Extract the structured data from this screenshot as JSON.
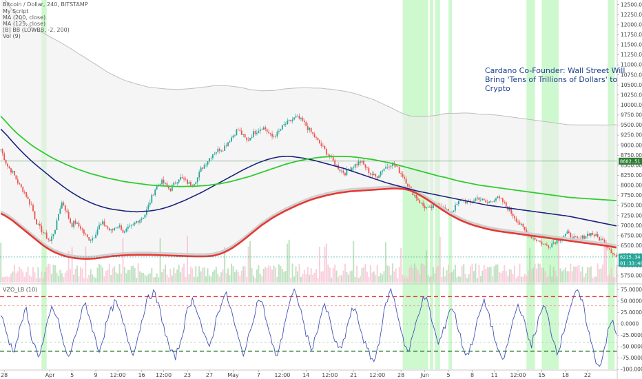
{
  "legend": {
    "title": "Bitcoin / Dollar, 240, BITSTAMP",
    "lines": [
      "My Script",
      "MA (200, close)",
      "MA (125, close)",
      "[B] BB (LOWBB, -2, 200)",
      "Vol (9)"
    ]
  },
  "news_annotation": [
    "Cardano Co-Founder: Wall Street Will",
    "Bring 'Tens of Trillions of Dollars' to",
    "Crypto"
  ],
  "oscillator_label": "VZO_LB (10)",
  "price_tags": [
    {
      "value": "8602.51",
      "kind": "level",
      "color": "#2e7d32"
    },
    {
      "value": "6215.34",
      "kind": "last",
      "color": "#26a69a"
    },
    {
      "value": "01:33:40",
      "kind": "timer",
      "color": "#26a69a"
    }
  ],
  "colors": {
    "ma200": "#2ecc2e",
    "ma125": "#1a237e",
    "lowbb": "#e53935",
    "band": "#bdbdbd",
    "osc": "#3f51b5",
    "highlight": "#a5f3a5",
    "bull": "#26a69a",
    "bear": "#ef5350"
  },
  "chart_data": [
    {
      "type": "line",
      "title": "Bitcoin / Dollar, 240, BITSTAMP",
      "ylim": [
        5580,
        12580
      ],
      "y_ticks": [
        "12500.00",
        "12250.00",
        "12000.00",
        "11750.00",
        "11500.00",
        "11250.00",
        "11000.00",
        "10750.00",
        "10500.00",
        "10250.00",
        "10000.00",
        "9750.00",
        "9500.00",
        "9250.00",
        "9000.00",
        "8750.00",
        "8500.00",
        "8250.00",
        "8000.00",
        "7750.00",
        "7500.00",
        "7250.00",
        "7000.00",
        "6750.00",
        "6500.00",
        "6250.00",
        "6000.00",
        "5750.00"
      ],
      "x_ticks": [
        "28",
        "Apr",
        "5",
        "9",
        "12:00",
        "16",
        "12:00",
        "23",
        "27",
        "May",
        "7",
        "12:00",
        "14",
        "12:00",
        "21",
        "12:00",
        "28",
        "Jun",
        "5",
        "8",
        "11",
        "12:00",
        "15",
        "18",
        "22"
      ],
      "x_tick_index": [
        2,
        29,
        42,
        56,
        69,
        83,
        96,
        110,
        123,
        137,
        152,
        166,
        180,
        194,
        208,
        222,
        236,
        250,
        264,
        278,
        291,
        305,
        319,
        333,
        346
      ],
      "series": [
        {
          "name": "Price",
          "values": [
            8900,
            8700,
            8500,
            8400,
            8300,
            8150,
            8000,
            7900,
            7800,
            7600,
            7500,
            7200,
            7000,
            6900,
            6800,
            6700,
            6600,
            6800,
            7000,
            7400,
            7600,
            7400,
            7200,
            7000,
            7100,
            7000,
            6950,
            6800,
            6700,
            6650,
            6700,
            6850,
            7000,
            7050,
            7000,
            6900,
            6850,
            6950,
            7000,
            6950,
            6800,
            6900,
            6950,
            7000,
            7100,
            7150,
            7200,
            7300,
            7500,
            7700,
            7900,
            8000,
            8100,
            8050,
            7950,
            7900,
            8000,
            8100,
            8200,
            8150,
            8100,
            8050,
            8000,
            8100,
            8200,
            8400,
            8500,
            8600,
            8700,
            8800,
            8850,
            8900,
            8900,
            9000,
            9100,
            9200,
            9300,
            9400,
            9300,
            9200,
            9100,
            9200,
            9300,
            9350,
            9400,
            9450,
            9400,
            9300,
            9200,
            9250,
            9300,
            9400,
            9500,
            9550,
            9600,
            9650,
            9700,
            9650,
            9600,
            9500,
            9400,
            9300,
            9200,
            9100,
            9000,
            8900,
            8800,
            8700,
            8600,
            8500,
            8400,
            8350,
            8300,
            8400,
            8450,
            8500,
            8550,
            8600,
            8500,
            8400,
            8300,
            8250,
            8200,
            8300,
            8400,
            8450,
            8500,
            8550,
            8500,
            8400,
            8300,
            8200,
            8050,
            7900,
            7800,
            7700,
            7600,
            7500,
            7450,
            7400,
            7450,
            7500,
            7550,
            7500,
            7400,
            7350,
            7300,
            7400,
            7500,
            7600,
            7650,
            7600,
            7550,
            7600,
            7650,
            7700,
            7650,
            7600,
            7550,
            7600,
            7650,
            7700,
            7650,
            7600,
            7500,
            7400,
            7300,
            7200,
            7100,
            7000,
            6900,
            6800,
            6750,
            6700,
            6650,
            6600,
            6550,
            6500,
            6500,
            6550,
            6600,
            6650,
            6700,
            6750,
            6800,
            6750,
            6700,
            6650,
            6650,
            6700,
            6750,
            6800,
            6800,
            6750,
            6700,
            6650,
            6600,
            6500,
            6400,
            6300,
            6215
          ]
        },
        {
          "name": "MA (200, close)",
          "values": [
            9720,
            9560,
            9400,
            9260,
            9140,
            9020,
            8920,
            8830,
            8740,
            8660,
            8590,
            8520,
            8460,
            8400,
            8350,
            8300,
            8260,
            8220,
            8180,
            8150,
            8120,
            8090,
            8070,
            8050,
            8030,
            8010,
            8000,
            7990,
            7980,
            7975,
            7970,
            7972,
            7975,
            7980,
            7990,
            8000,
            8020,
            8040,
            8070,
            8100,
            8140,
            8180,
            8220,
            8270,
            8320,
            8370,
            8420,
            8470,
            8520,
            8560,
            8600,
            8630,
            8660,
            8680,
            8700,
            8710,
            8720,
            8720,
            8720,
            8715,
            8700,
            8680,
            8660,
            8640,
            8610,
            8580,
            8550,
            8510,
            8470,
            8430,
            8390,
            8350,
            8310,
            8270,
            8230,
            8200,
            8160,
            8120,
            8090,
            8060,
            8030,
            8000,
            7980,
            7960,
            7940,
            7920,
            7900,
            7880,
            7860,
            7840,
            7820,
            7800,
            7780,
            7760,
            7740,
            7720,
            7700,
            7690,
            7680,
            7670,
            7660,
            7650,
            7640,
            7630,
            7620
          ]
        },
        {
          "name": "MA (125, close)",
          "values": [
            9400,
            9250,
            9080,
            8920,
            8770,
            8630,
            8500,
            8380,
            8260,
            8140,
            8030,
            7920,
            7820,
            7730,
            7650,
            7580,
            7520,
            7470,
            7430,
            7400,
            7380,
            7360,
            7350,
            7340,
            7350,
            7360,
            7380,
            7410,
            7450,
            7500,
            7560,
            7620,
            7690,
            7760,
            7830,
            7910,
            7990,
            8070,
            8150,
            8230,
            8310,
            8390,
            8460,
            8530,
            8590,
            8640,
            8680,
            8710,
            8720,
            8720,
            8700,
            8680,
            8650,
            8620,
            8580,
            8540,
            8500,
            8460,
            8420,
            8370,
            8320,
            8270,
            8220,
            8170,
            8120,
            8070,
            8030,
            7990,
            7950,
            7910,
            7870,
            7840,
            7810,
            7780,
            7750,
            7720,
            7690,
            7660,
            7630,
            7600,
            7570,
            7540,
            7510,
            7490,
            7470,
            7450,
            7430,
            7410,
            7390,
            7370,
            7350,
            7330,
            7310,
            7290,
            7270,
            7250,
            7230,
            7200,
            7170,
            7140,
            7110,
            7080,
            7050,
            7020,
            6990
          ]
        },
        {
          "name": "[B] BB (LOWBB, -2, 200)",
          "values": [
            7300,
            7220,
            7120,
            7000,
            6880,
            6760,
            6640,
            6520,
            6420,
            6340,
            6280,
            6230,
            6200,
            6180,
            6170,
            6170,
            6180,
            6200,
            6220,
            6240,
            6250,
            6260,
            6265,
            6270,
            6270,
            6270,
            6265,
            6260,
            6255,
            6250,
            6245,
            6240,
            6235,
            6230,
            6230,
            6235,
            6250,
            6290,
            6350,
            6430,
            6530,
            6640,
            6760,
            6880,
            7000,
            7100,
            7200,
            7280,
            7360,
            7430,
            7500,
            7560,
            7620,
            7670,
            7710,
            7750,
            7780,
            7810,
            7830,
            7850,
            7860,
            7870,
            7880,
            7890,
            7900,
            7910,
            7920,
            7920,
            7910,
            7880,
            7820,
            7740,
            7650,
            7550,
            7450,
            7350,
            7260,
            7180,
            7110,
            7050,
            7000,
            6960,
            6920,
            6890,
            6860,
            6840,
            6820,
            6800,
            6780,
            6760,
            6740,
            6720,
            6700,
            6680,
            6660,
            6640,
            6620,
            6600,
            6580,
            6560,
            6540,
            6520,
            6500,
            6480,
            6450
          ]
        }
      ]
    },
    {
      "type": "line",
      "title": "VZO_LB (10)",
      "ylim": [
        -100,
        85
      ],
      "y_ticks": [
        "75.0000",
        "50.0000",
        "25.0000",
        "0.0000",
        "-25.0000",
        "-50.0000",
        "-75.0000",
        "-100.0000"
      ],
      "reference_levels": [
        60,
        40,
        -40,
        -60
      ],
      "series": [
        {
          "name": "VZO_LB (10)",
          "values": [
            20,
            -10,
            -40,
            -60,
            -30,
            10,
            30,
            -20,
            -50,
            -70,
            -40,
            0,
            35,
            20,
            -10,
            -55,
            -75,
            -45,
            -10,
            25,
            45,
            10,
            -25,
            -60,
            -35,
            5,
            30,
            50,
            25,
            -5,
            -35,
            -65,
            -40,
            0,
            40,
            60,
            70,
            45,
            10,
            -30,
            -60,
            -75,
            -50,
            -10,
            30,
            55,
            40,
            5,
            -30,
            -55,
            -20,
            20,
            50,
            65,
            40,
            0,
            -35,
            -65,
            -45,
            -5,
            35,
            60,
            30,
            -10,
            -50,
            -70,
            -40,
            10,
            45,
            70,
            55,
            15,
            -25,
            -55,
            -35,
            5,
            40,
            25,
            -15,
            -45,
            -60,
            -30,
            10,
            35,
            15,
            -20,
            -50,
            -70,
            -85,
            -40,
            10,
            55,
            75,
            40,
            0,
            -40,
            -65,
            -30,
            10,
            45,
            60,
            30,
            -10,
            -45,
            -25,
            10,
            40,
            20,
            -20,
            -55,
            -70,
            -40,
            -5,
            30,
            50,
            20,
            -20,
            -55,
            -85,
            -60,
            -20,
            20,
            45,
            15,
            -25,
            -45,
            -15,
            20,
            40,
            10,
            -30,
            -60,
            -40,
            0,
            35,
            60,
            70,
            45,
            5,
            -40,
            -75,
            -95,
            -60,
            -20,
            10,
            -25
          ]
        }
      ]
    }
  ]
}
